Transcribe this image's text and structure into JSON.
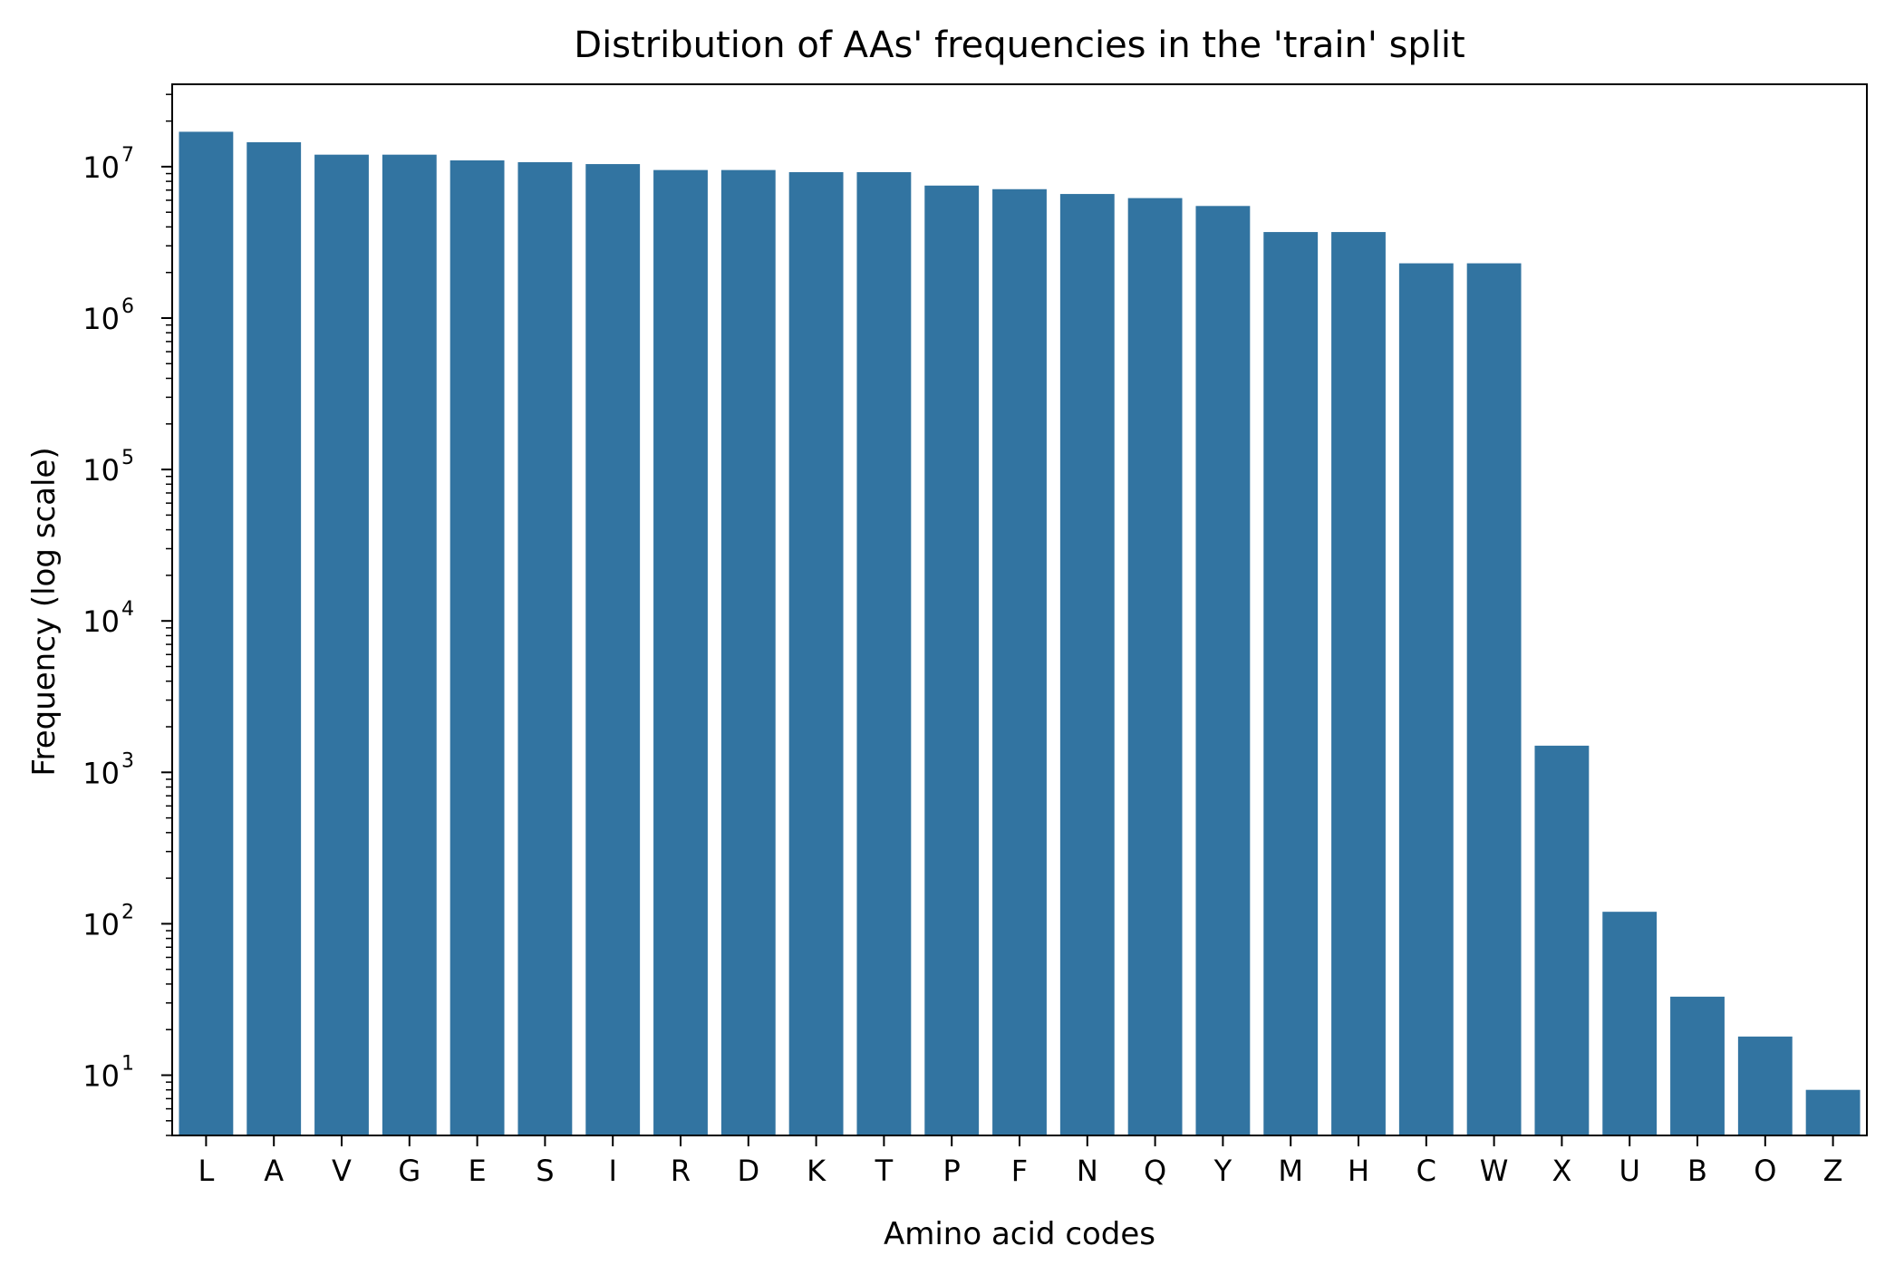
{
  "chart_data": {
    "type": "bar",
    "title": "Distribution of AAs' frequencies in the 'train' split",
    "xlabel": "Amino acid codes",
    "ylabel": "Frequency (log scale)",
    "y_scale": "log",
    "ylim": [
      4,
      35000000
    ],
    "grid": false,
    "bar_color": "#3274a1",
    "categories": [
      "L",
      "A",
      "V",
      "G",
      "E",
      "S",
      "I",
      "R",
      "D",
      "K",
      "T",
      "P",
      "F",
      "N",
      "Q",
      "Y",
      "M",
      "H",
      "C",
      "W",
      "X",
      "U",
      "B",
      "O",
      "Z"
    ],
    "values": [
      17000000,
      14500000,
      12000000,
      12000000,
      11000000,
      10700000,
      10400000,
      9500000,
      9500000,
      9200000,
      9200000,
      7500000,
      7100000,
      6600000,
      6200000,
      5500000,
      3700000,
      3700000,
      2300000,
      2300000,
      1500,
      120,
      33,
      18,
      8
    ],
    "yticks": [
      {
        "base": "10",
        "exp": "1",
        "value": 10
      },
      {
        "base": "10",
        "exp": "2",
        "value": 100
      },
      {
        "base": "10",
        "exp": "3",
        "value": 1000
      },
      {
        "base": "10",
        "exp": "4",
        "value": 10000
      },
      {
        "base": "10",
        "exp": "5",
        "value": 100000
      },
      {
        "base": "10",
        "exp": "6",
        "value": 1000000
      },
      {
        "base": "10",
        "exp": "7",
        "value": 10000000
      }
    ]
  }
}
